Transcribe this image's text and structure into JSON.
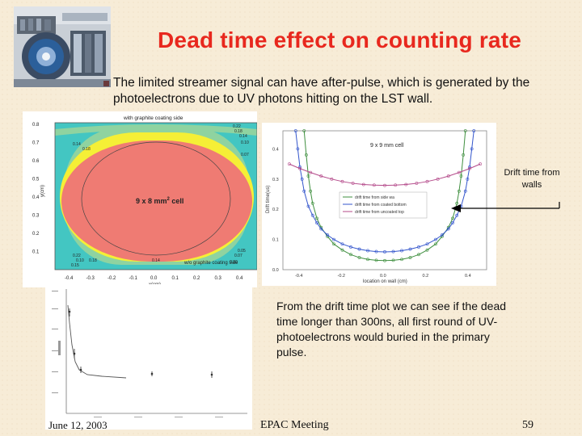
{
  "slide": {
    "title": "Dead time effect on  counting rate",
    "bullet": "The limited streamer signal can have after-pulse, which is generated by the photoelectrons due to UV photons hitting on the LST wall.",
    "drift_label": "Drift time from walls",
    "conclusion": "From the drift time plot we can see if the dead time longer than 300ns, all first round of UV-photoelectrons would buried in the primary pulse.",
    "footer": {
      "date": "June 12, 2003",
      "meeting": "EPAC  Meeting",
      "page": "59"
    },
    "colors": {
      "title": "#e8281e",
      "background": "#f7ecd7",
      "cell_interior": "#ef7b73",
      "contour_yellow": "#f5ef36",
      "contour_green": "#8fd3a0",
      "contour_cyan": "#43c6c2"
    }
  },
  "contour_plot": {
    "title": "with graphite coating side",
    "bottom_annotation": "w/o graphite coating side",
    "cell_label": "9 x 8 mm",
    "cell_label_sup": "2",
    "cell_label_suffix": " cell",
    "ylabel": "y(cm)",
    "xlabel": "x(cm)",
    "x_ticks": [
      "-0.4",
      "-0.3",
      "-0.2",
      "-0.1",
      "0.0",
      "0.1",
      "0.2",
      "0.3",
      "0.4"
    ],
    "y_ticks": [
      "0.8",
      "0.7",
      "0.6",
      "0.5",
      "0.4",
      "0.3",
      "0.2",
      "0.1"
    ],
    "contour_labels": [
      "0.22",
      "0.18",
      "0.14",
      "0.10",
      "0.07",
      "0.14",
      "0.18",
      "0.22",
      "0.10",
      "0.15",
      "0.18",
      "0.14",
      "0.10",
      "0.07",
      "0.05"
    ]
  },
  "drift_plot": {
    "cell_label": "9 x 9 mm cell",
    "ylabel": "Drift time(us)",
    "xlabel": "location on wall (cm)",
    "x_ticks": [
      "-0.4",
      "-0.2",
      "0.0",
      "0.2",
      "0.4"
    ],
    "y_ticks": [
      "0.4",
      "0.3",
      "0.2",
      "0.1",
      "0.0"
    ],
    "legend": [
      "drift time from side wa",
      "drift time from coated bottom",
      "drift time from uncoated top"
    ],
    "series_colors": [
      "#3f8f3f",
      "#3355cc",
      "#b44a8a"
    ]
  },
  "chart_data": {
    "type": "line",
    "title": "",
    "xlabel": "location on wall (cm)",
    "ylabel": "Drift time(us)",
    "xlim": [
      -0.48,
      0.48
    ],
    "ylim": [
      0.0,
      0.46
    ],
    "series": [
      {
        "name": "drift time from side wa",
        "x": [
          -0.38,
          -0.37,
          -0.36,
          -0.35,
          -0.34,
          -0.32,
          -0.3,
          -0.27,
          -0.24,
          -0.2,
          -0.16,
          -0.12,
          -0.08,
          -0.04,
          0.0,
          0.04,
          0.08,
          0.12,
          0.16,
          0.2,
          0.24,
          0.27,
          0.3,
          0.32,
          0.34,
          0.35,
          0.36,
          0.37,
          0.38
        ],
        "y": [
          0.46,
          0.38,
          0.31,
          0.26,
          0.22,
          0.17,
          0.14,
          0.11,
          0.085,
          0.065,
          0.05,
          0.04,
          0.034,
          0.031,
          0.03,
          0.031,
          0.034,
          0.04,
          0.05,
          0.065,
          0.085,
          0.11,
          0.14,
          0.17,
          0.22,
          0.26,
          0.31,
          0.38,
          0.46
        ]
      },
      {
        "name": "drift time from coated bottom",
        "x": [
          -0.42,
          -0.41,
          -0.4,
          -0.39,
          -0.38,
          -0.36,
          -0.34,
          -0.32,
          -0.3,
          -0.27,
          -0.24,
          -0.2,
          -0.16,
          -0.12,
          -0.08,
          -0.04,
          0.0,
          0.04,
          0.08,
          0.12,
          0.16,
          0.2,
          0.24,
          0.27,
          0.3,
          0.32,
          0.34,
          0.36,
          0.38,
          0.39,
          0.4,
          0.41,
          0.42
        ],
        "y": [
          0.46,
          0.4,
          0.34,
          0.3,
          0.26,
          0.21,
          0.18,
          0.155,
          0.135,
          0.115,
          0.1,
          0.085,
          0.075,
          0.068,
          0.063,
          0.06,
          0.059,
          0.06,
          0.063,
          0.068,
          0.075,
          0.085,
          0.1,
          0.115,
          0.135,
          0.155,
          0.18,
          0.21,
          0.26,
          0.3,
          0.34,
          0.4,
          0.46
        ]
      },
      {
        "name": "drift time from uncoated top",
        "x": [
          -0.45,
          -0.4,
          -0.35,
          -0.3,
          -0.25,
          -0.2,
          -0.15,
          -0.1,
          -0.05,
          0.0,
          0.05,
          0.1,
          0.15,
          0.2,
          0.25,
          0.3,
          0.35,
          0.4,
          0.45
        ],
        "y": [
          0.35,
          0.335,
          0.322,
          0.31,
          0.3,
          0.292,
          0.286,
          0.282,
          0.28,
          0.279,
          0.28,
          0.282,
          0.286,
          0.292,
          0.3,
          0.31,
          0.322,
          0.335,
          0.35
        ]
      }
    ]
  }
}
